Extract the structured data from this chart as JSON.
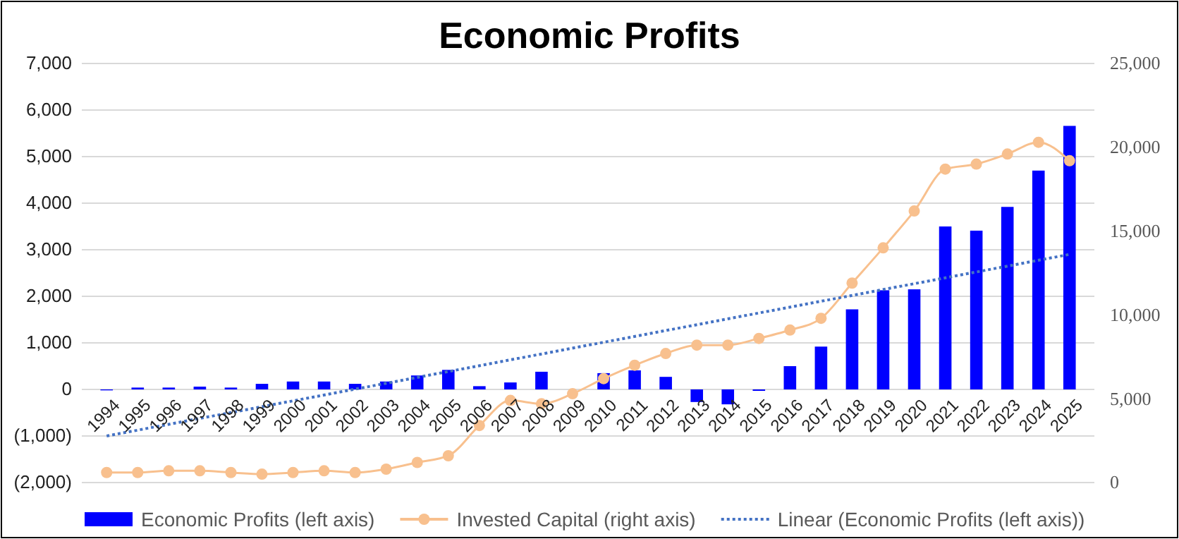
{
  "chart_data": {
    "type": "bar",
    "title": "Economic Profits",
    "categories": [
      "1994",
      "1995",
      "1996",
      "1997",
      "1998",
      "1999",
      "2000",
      "2001",
      "2002",
      "2003",
      "2004",
      "2005",
      "2006",
      "2007",
      "2008",
      "2009",
      "2010",
      "2011",
      "2012",
      "2013",
      "2014",
      "2015",
      "2016",
      "2017",
      "2018",
      "2019",
      "2020",
      "2021",
      "2022",
      "2023",
      "2024",
      "2025"
    ],
    "series": [
      {
        "name": "Economic Profits (left axis)",
        "color": "#0000ff",
        "values": [
          -20,
          40,
          40,
          60,
          40,
          120,
          170,
          170,
          120,
          170,
          300,
          420,
          70,
          150,
          380,
          0,
          350,
          410,
          270,
          -270,
          -320,
          -30,
          500,
          920,
          1720,
          2130,
          2150,
          3500,
          3410,
          3920,
          4700,
          5660
        ]
      },
      {
        "name": "Invested Capital (right axis)",
        "type": "line",
        "axis": "y2",
        "color": "#f8c08e",
        "marker": "circle",
        "values": [
          600,
          600,
          700,
          700,
          600,
          500,
          600,
          700,
          600,
          800,
          1200,
          1600,
          3400,
          4900,
          4700,
          5300,
          6200,
          7000,
          7700,
          8200,
          8200,
          8600,
          9100,
          9800,
          11900,
          14000,
          16200,
          18700,
          19000,
          19600,
          20300,
          19200
        ]
      },
      {
        "name": "Linear (Economic Profits (left axis))",
        "type": "line",
        "color": "#4472c4",
        "line_style": "dotted",
        "marker": "none",
        "values": [
          -1000,
          null,
          null,
          null,
          null,
          null,
          null,
          null,
          null,
          null,
          null,
          null,
          null,
          null,
          null,
          null,
          null,
          null,
          null,
          null,
          null,
          null,
          null,
          null,
          null,
          null,
          null,
          null,
          null,
          null,
          null,
          2900
        ]
      }
    ],
    "ylim": [
      -2000,
      7000
    ],
    "yticks": [
      {
        "value": -2000,
        "label": "(2,000)"
      },
      {
        "value": -1000,
        "label": "(1,000)"
      },
      0,
      {
        "value": 1000,
        "label": "1,000"
      },
      {
        "value": 2000,
        "label": "2,000"
      },
      {
        "value": 3000,
        "label": "3,000"
      },
      {
        "value": 4000,
        "label": "4,000"
      },
      {
        "value": 5000,
        "label": "5,000"
      },
      {
        "value": 6000,
        "label": "6,000"
      },
      {
        "value": 7000,
        "label": "7,000"
      }
    ],
    "y2lim": [
      0,
      25000
    ],
    "y2ticks": [
      0,
      {
        "value": 5000,
        "label": "5,000"
      },
      {
        "value": 10000,
        "label": "10,000"
      },
      {
        "value": 15000,
        "label": "15,000"
      },
      {
        "value": 20000,
        "label": "20,000"
      },
      {
        "value": 25000,
        "label": "25,000"
      }
    ],
    "grid": "y",
    "legend": "bottom"
  }
}
